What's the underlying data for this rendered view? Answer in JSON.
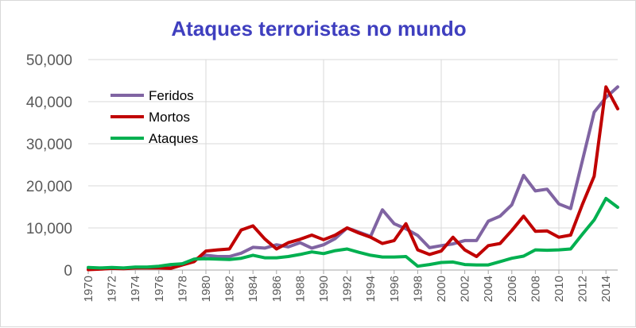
{
  "chart_data": {
    "type": "line",
    "title": "Ataques terroristas no mundo",
    "xlabel": "",
    "ylabel": "",
    "xlim": [
      1970,
      2015
    ],
    "ylim": [
      0,
      50000
    ],
    "yticks": [
      0,
      10000,
      20000,
      30000,
      40000,
      50000
    ],
    "ytick_labels": [
      "0",
      "10,000",
      "20,000",
      "30,000",
      "40,000",
      "50,000"
    ],
    "xticks": [
      1970,
      1972,
      1974,
      1976,
      1978,
      1980,
      1982,
      1984,
      1986,
      1988,
      1990,
      1992,
      1994,
      1996,
      1998,
      2000,
      2002,
      2004,
      2006,
      2008,
      2010,
      2012,
      2014
    ],
    "xtick_labels": [
      "1970",
      "1972",
      "1974",
      "1976",
      "1978",
      "1980",
      "1982",
      "1984",
      "1986",
      "1988",
      "1990",
      "1992",
      "1994",
      "1996",
      "1998",
      "2000",
      "2002",
      "2004",
      "2006",
      "2008",
      "2010",
      "2012",
      "2014"
    ],
    "grid": true,
    "legend_position": "top-left",
    "x": [
      1970,
      1971,
      1972,
      1973,
      1974,
      1975,
      1976,
      1977,
      1978,
      1979,
      1980,
      1981,
      1982,
      1983,
      1984,
      1985,
      1986,
      1987,
      1988,
      1989,
      1990,
      1991,
      1992,
      1993,
      1994,
      1995,
      1996,
      1997,
      1998,
      1999,
      2000,
      2001,
      2002,
      2003,
      2004,
      2005,
      2006,
      2007,
      2008,
      2009,
      2010,
      2011,
      2012,
      2013,
      2014,
      2015
    ],
    "series": [
      {
        "name": "Feridos",
        "color": "#8064a2",
        "values": [
          200,
          300,
          400,
          400,
          500,
          600,
          700,
          900,
          1500,
          2500,
          3500,
          3200,
          3200,
          4000,
          5400,
          5200,
          6000,
          5500,
          6500,
          5200,
          6000,
          7500,
          10000,
          9000,
          8000,
          14300,
          11000,
          9800,
          8200,
          5300,
          5800,
          6200,
          7000,
          7000,
          11600,
          12800,
          15500,
          22500,
          18800,
          19200,
          15700,
          14600,
          26000,
          37500,
          41000,
          43500
        ]
      },
      {
        "name": "Mortos",
        "color": "#c00000",
        "values": [
          100,
          200,
          400,
          300,
          500,
          500,
          500,
          400,
          1200,
          2000,
          4500,
          4800,
          5000,
          9500,
          10500,
          7400,
          5000,
          6500,
          7300,
          8300,
          7200,
          8300,
          10000,
          8800,
          7800,
          6300,
          7000,
          11000,
          4800,
          3700,
          4500,
          7800,
          4800,
          3200,
          5800,
          6300,
          9400,
          12800,
          9200,
          9300,
          7800,
          8300,
          15600,
          22300,
          43500,
          38300
        ]
      },
      {
        "name": "Ataques",
        "color": "#00b050",
        "values": [
          600,
          500,
          600,
          500,
          700,
          700,
          900,
          1300,
          1500,
          2600,
          2700,
          2600,
          2500,
          2800,
          3500,
          2900,
          2900,
          3200,
          3700,
          4300,
          3900,
          4600,
          5000,
          4200,
          3500,
          3100,
          3100,
          3200,
          900,
          1300,
          1800,
          1900,
          1300,
          1200,
          1200,
          2000,
          2800,
          3300,
          4800,
          4700,
          4800,
          5000,
          8500,
          11900,
          17000,
          14900
        ]
      }
    ]
  },
  "colors": {
    "title": "#3f3fbf",
    "gridline": "#d9d9d9",
    "axis": "#a6a6a6"
  }
}
